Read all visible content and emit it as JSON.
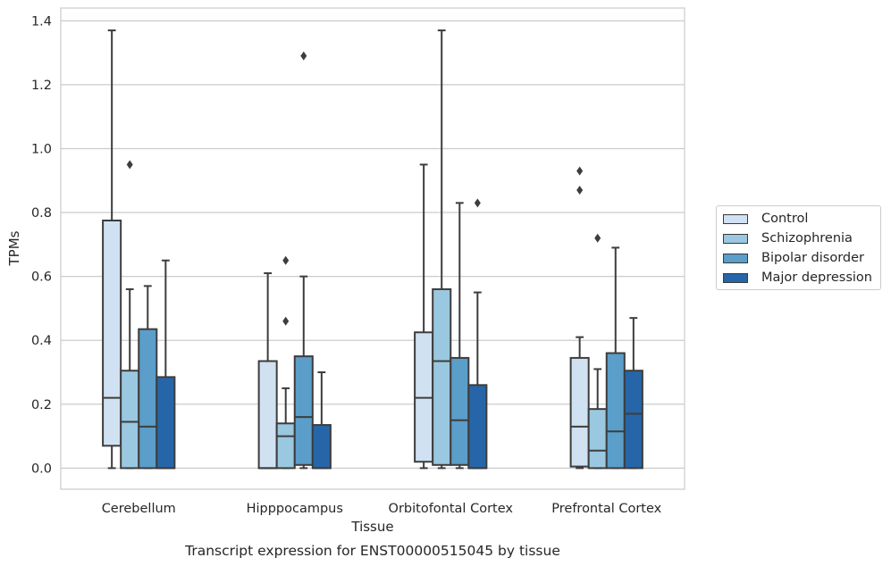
{
  "chart_data": {
    "type": "box",
    "title": "Transcript expression for ENST00000515045 by tissue",
    "xlabel": "Tissue",
    "ylabel": "TPMs",
    "ylim": [
      -0.066,
      1.44
    ],
    "yticks": [
      "0.0",
      "0.2",
      "0.4",
      "0.6",
      "0.8",
      "1.0",
      "1.2",
      "1.4"
    ],
    "ytick_values": [
      0,
      0.2,
      0.4,
      0.6,
      0.8,
      1.0,
      1.2,
      1.4
    ],
    "categories": [
      "Cerebellum",
      "Hipppocampus",
      "Orbitofontal Cortex",
      "Prefrontal Cortex"
    ],
    "grid": true,
    "legend_position": "right",
    "series": [
      {
        "name": "Control",
        "color": "#d0e1f2",
        "boxes": [
          {
            "whislo": 0.0,
            "q1": 0.07,
            "med": 0.22,
            "q3": 0.775,
            "whishi": 1.37,
            "fliers": []
          },
          {
            "whislo": 0.0,
            "q1": 0.0,
            "med": 0.0,
            "q3": 0.335,
            "whishi": 0.61,
            "fliers": []
          },
          {
            "whislo": 0.0,
            "q1": 0.02,
            "med": 0.22,
            "q3": 0.425,
            "whishi": 0.95,
            "fliers": []
          },
          {
            "whislo": 0.0,
            "q1": 0.005,
            "med": 0.13,
            "q3": 0.345,
            "whishi": 0.41,
            "fliers": [
              0.87,
              0.93
            ]
          }
        ]
      },
      {
        "name": "Schizophrenia",
        "color": "#9ac8e0",
        "boxes": [
          {
            "whislo": 0.0,
            "q1": 0.0,
            "med": 0.145,
            "q3": 0.305,
            "whishi": 0.56,
            "fliers": [
              0.95
            ]
          },
          {
            "whislo": 0.0,
            "q1": 0.0,
            "med": 0.1,
            "q3": 0.14,
            "whishi": 0.25,
            "fliers": [
              0.46,
              0.65
            ]
          },
          {
            "whislo": 0.0,
            "q1": 0.01,
            "med": 0.335,
            "q3": 0.56,
            "whishi": 1.37,
            "fliers": []
          },
          {
            "whislo": 0.0,
            "q1": 0.0,
            "med": 0.055,
            "q3": 0.185,
            "whishi": 0.31,
            "fliers": [
              0.72
            ]
          }
        ]
      },
      {
        "name": "Bipolar disorder",
        "color": "#5a9ec9",
        "boxes": [
          {
            "whislo": 0.0,
            "q1": 0.0,
            "med": 0.13,
            "q3": 0.435,
            "whishi": 0.57,
            "fliers": []
          },
          {
            "whislo": 0.0,
            "q1": 0.01,
            "med": 0.16,
            "q3": 0.35,
            "whishi": 0.6,
            "fliers": [
              1.29
            ]
          },
          {
            "whislo": 0.0,
            "q1": 0.01,
            "med": 0.15,
            "q3": 0.345,
            "whishi": 0.83,
            "fliers": []
          },
          {
            "whislo": 0.0,
            "q1": 0.0,
            "med": 0.115,
            "q3": 0.36,
            "whishi": 0.69,
            "fliers": []
          }
        ]
      },
      {
        "name": "Major depression",
        "color": "#2666a8",
        "boxes": [
          {
            "whislo": 0.0,
            "q1": 0.0,
            "med": 0.0,
            "q3": 0.285,
            "whishi": 0.65,
            "fliers": []
          },
          {
            "whislo": 0.0,
            "q1": 0.0,
            "med": 0.0,
            "q3": 0.135,
            "whishi": 0.3,
            "fliers": []
          },
          {
            "whislo": 0.0,
            "q1": 0.0,
            "med": 0.0,
            "q3": 0.26,
            "whishi": 0.55,
            "fliers": [
              0.83
            ]
          },
          {
            "whislo": 0.0,
            "q1": 0.0,
            "med": 0.17,
            "q3": 0.305,
            "whishi": 0.47,
            "fliers": []
          }
        ]
      }
    ]
  }
}
